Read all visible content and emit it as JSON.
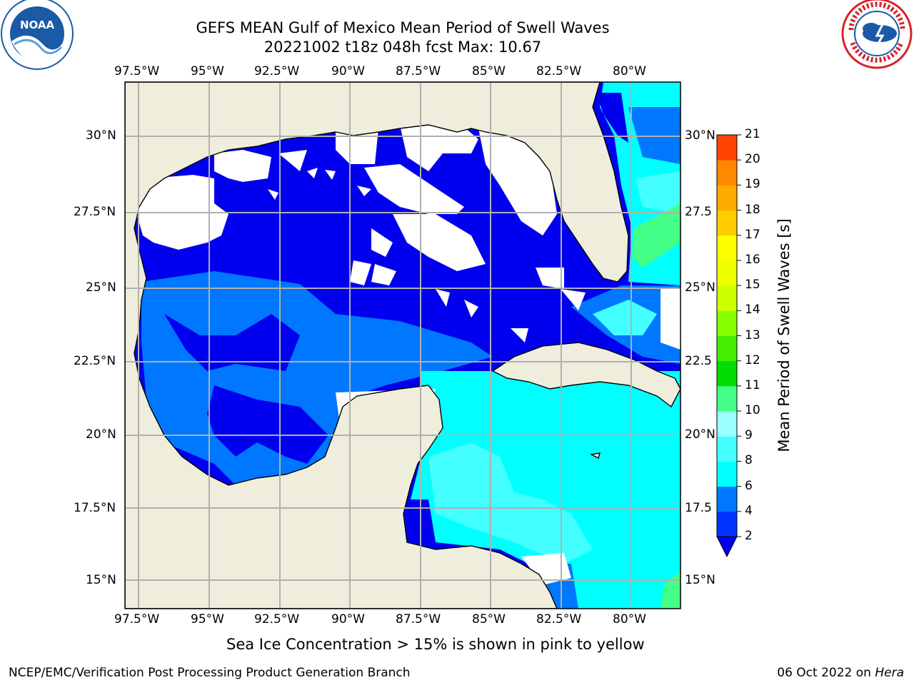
{
  "header": {
    "title_line1": "GEFS MEAN Gulf of Mexico Mean Period of Swell Waves",
    "title_line2": "20221002 t18z 048h fcst   Max: 10.67"
  },
  "logos": {
    "left": {
      "name": "NOAA",
      "ring_text": "NATIONAL OCEANIC AND ATMOSPHERIC ADMINISTRATION · U.S. DEPARTMENT OF COMMERCE",
      "color": "#1a5aa6"
    },
    "right": {
      "name": "NATIONAL WEATHER SERVICE",
      "color": "#d8232a"
    }
  },
  "map": {
    "lon_ticks": [
      "97.5°W",
      "95°W",
      "92.5°W",
      "90°W",
      "87.5°W",
      "85°W",
      "82.5°W",
      "80°W"
    ],
    "lat_ticks_left": [
      "30°N",
      "27.5°N",
      "25°N",
      "22.5°N",
      "20°N",
      "17.5°N",
      "15°N"
    ],
    "lat_ticks_right": [
      "30°N",
      "27.5",
      "25°N",
      "22.5",
      "20°N",
      "17.5",
      "15°N"
    ],
    "lon_range": [
      -98,
      -78.2
    ],
    "lat_range": [
      14.1,
      31.7
    ],
    "land_color": "#efeedc",
    "grid_color": "#b0b0b0"
  },
  "colorbar": {
    "label": "Mean Period of Swell Waves [s]",
    "ticks": [
      "2",
      "4",
      "6",
      "8",
      "9",
      "10",
      "11",
      "12",
      "13",
      "14",
      "15",
      "16",
      "17",
      "18",
      "19",
      "20",
      "21"
    ],
    "levels": [
      2,
      4,
      6,
      8,
      9,
      10,
      11,
      12,
      13,
      14,
      15,
      16,
      17,
      18,
      19,
      20,
      21
    ],
    "colors": [
      "#0033ff",
      "#0077ff",
      "#00ffff",
      "#44ffff",
      "#99ffff",
      "#44ff88",
      "#00dd00",
      "#44ee00",
      "#88ff00",
      "#ccff00",
      "#eeff00",
      "#ffff00",
      "#ffcc00",
      "#ffaa00",
      "#ff8800",
      "#ff4400",
      "#ff1100"
    ],
    "under_color": "#0000ee"
  },
  "field_colors": {
    "deep_blue": "#0000ee",
    "mid_blue": "#0077ff",
    "cyan": "#00ffff",
    "light_cyan": "#44ffff",
    "green": "#44ff88"
  },
  "notes": {
    "ice_note": "Sea Ice Concentration > 15% is shown in pink to yellow"
  },
  "footer": {
    "left": "NCEP/EMC/Verification Post Processing Product Generation Branch",
    "date": "06 Oct 2022 on ",
    "host": "Hera"
  }
}
